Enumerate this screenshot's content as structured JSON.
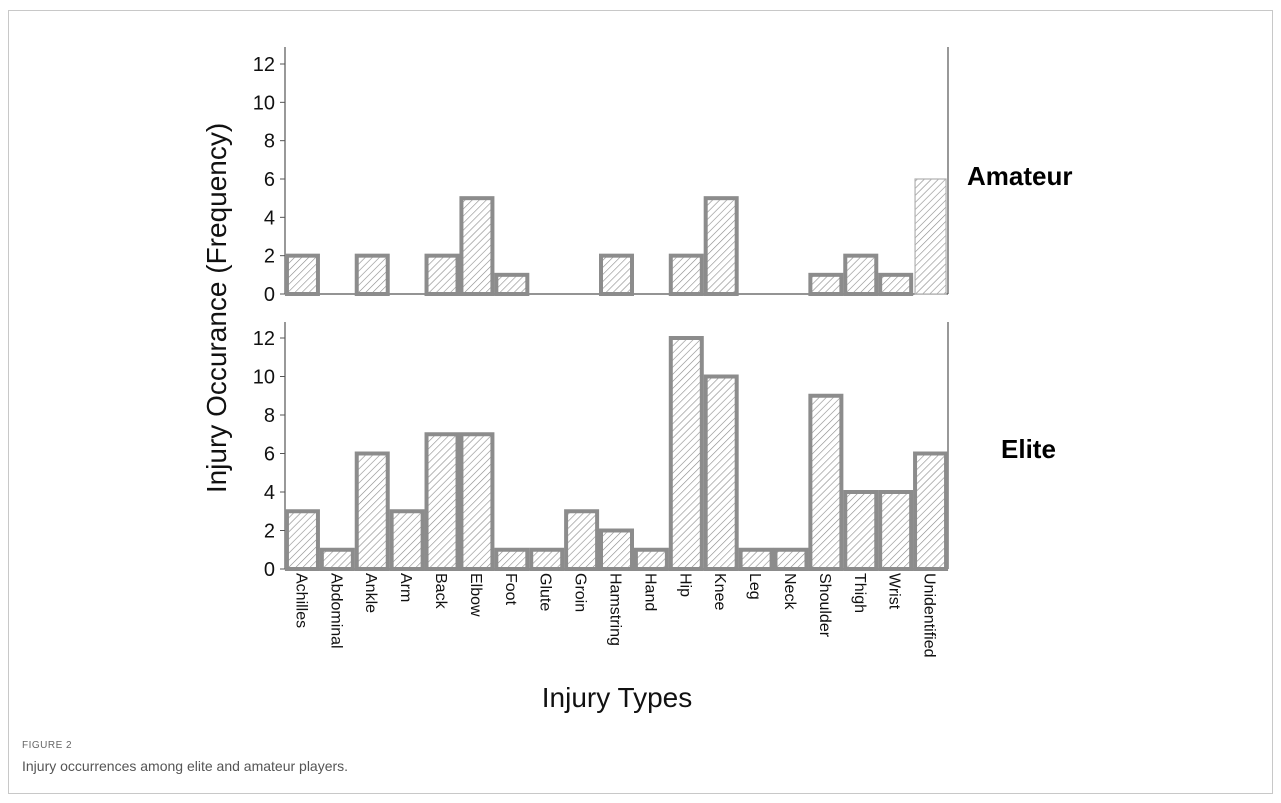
{
  "figure": {
    "label": "FIGURE 2",
    "caption": "Injury occurrences among elite and amateur players."
  },
  "colors": {
    "bar_stroke": "#8c8c8c",
    "bar_fill": "#ffffff",
    "hatch": "#8a8a8a",
    "axis": "#555555"
  },
  "chart_data": {
    "type": "bar",
    "title": "",
    "xlabel": "Injury Types",
    "ylabel": "Injury Occurance (Frequency)",
    "ylim": [
      0,
      12
    ],
    "yticks": [
      0,
      2,
      4,
      6,
      8,
      10,
      12
    ],
    "grid": false,
    "categories": [
      "Achilles",
      "Abdominal",
      "Ankle",
      "Arm",
      "Back",
      "Elbow",
      "Foot",
      "Glute",
      "Groin",
      "Hamstring",
      "Hand",
      "Hip",
      "Knee",
      "Leg",
      "Neck",
      "Shoulder",
      "Thigh",
      "Wrist",
      "Unidentified"
    ],
    "series": [
      {
        "name": "Amateur",
        "values": [
          2,
          0,
          2,
          0,
          2,
          5,
          1,
          0,
          0,
          2,
          0,
          2,
          5,
          0,
          0,
          1,
          2,
          1,
          6
        ]
      },
      {
        "name": "Elite",
        "values": [
          3,
          1,
          6,
          3,
          7,
          7,
          1,
          1,
          3,
          2,
          1,
          12,
          10,
          1,
          1,
          9,
          4,
          4,
          6
        ]
      }
    ]
  }
}
